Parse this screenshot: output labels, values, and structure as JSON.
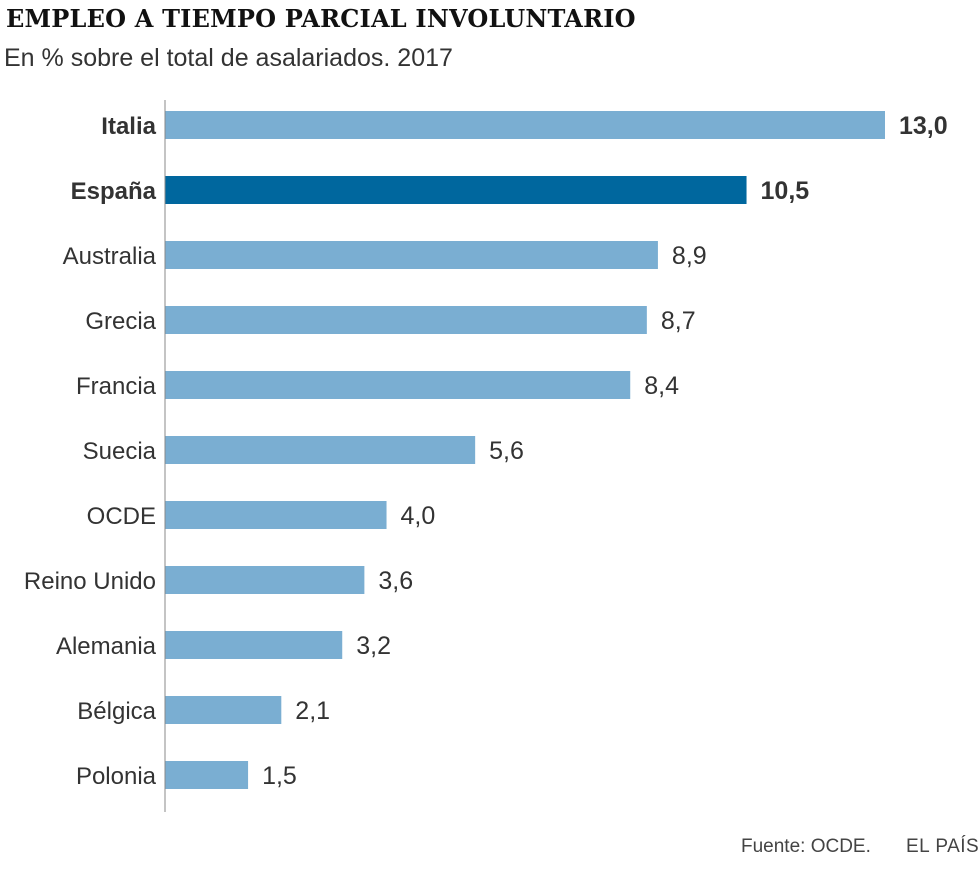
{
  "chart_data": {
    "type": "bar",
    "orientation": "horizontal",
    "title": "EMPLEO A TIEMPO PARCIAL INVOLUNTARIO",
    "subtitle": "En % sobre el total de asalariados. 2017",
    "categories": [
      "Italia",
      "España",
      "Australia",
      "Grecia",
      "Francia",
      "Suecia",
      "OCDE",
      "Reino Unido",
      "Alemania",
      "Bélgica",
      "Polonia"
    ],
    "values": [
      13.0,
      10.5,
      8.9,
      8.7,
      8.4,
      5.6,
      4.0,
      3.6,
      3.2,
      2.1,
      1.5
    ],
    "value_labels": [
      "13,0",
      "10,5",
      "8,9",
      "8,7",
      "8,4",
      "5,6",
      "4,0",
      "3,6",
      "3,2",
      "2,1",
      "1,5"
    ],
    "highlight": [
      "Italia",
      "España"
    ],
    "highlight_bar": "España",
    "xlim": [
      0,
      13.0
    ],
    "grid": false,
    "colors": {
      "bar": "#7aaed2",
      "highlight": "#00679e",
      "axis": "#888888",
      "text": "#333333"
    }
  },
  "footer": {
    "source": "Fuente: OCDE.",
    "brand": "EL PAÍS"
  }
}
